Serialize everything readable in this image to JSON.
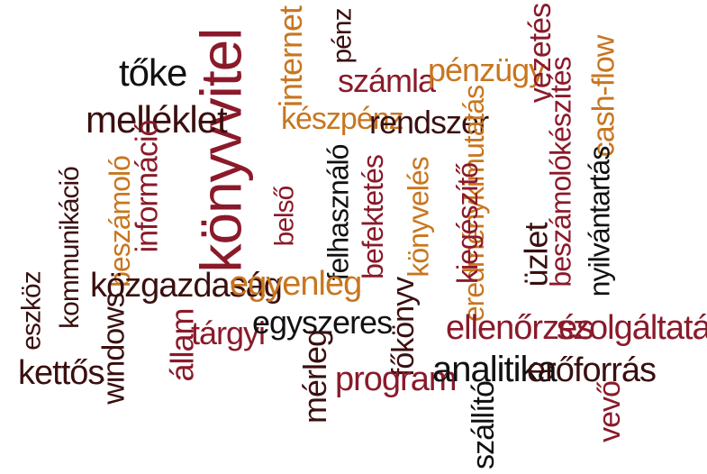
{
  "palette": {
    "dark": "#3a0f0f",
    "red": "#8a1a2a",
    "orange": "#c8761f",
    "black": "#111111"
  },
  "words": [
    "könyvvitel",
    "internet",
    "pénz",
    "tőke",
    "számla",
    "pénzügy",
    "vezetés",
    "cash-flow",
    "melléklet",
    "készpénz",
    "rendszer",
    "beszámolókészítés",
    "információ",
    "eredménykimutatás",
    "beszámoló",
    "felhasználó",
    "befektetés",
    "könyvelés",
    "kiegészítő",
    "belső",
    "kommunikáció",
    "nyilvántartás",
    "eszköz",
    "üzlet",
    "közgazdaság",
    "egyenleg",
    "windows",
    "állam",
    "tárgyi",
    "egyszeres",
    "főkönyv",
    "ellenőrzés",
    "szolgáltatás",
    "kettős",
    "mérleg",
    "program",
    "analitika",
    "erőforrás",
    "szállító",
    "vevő"
  ]
}
